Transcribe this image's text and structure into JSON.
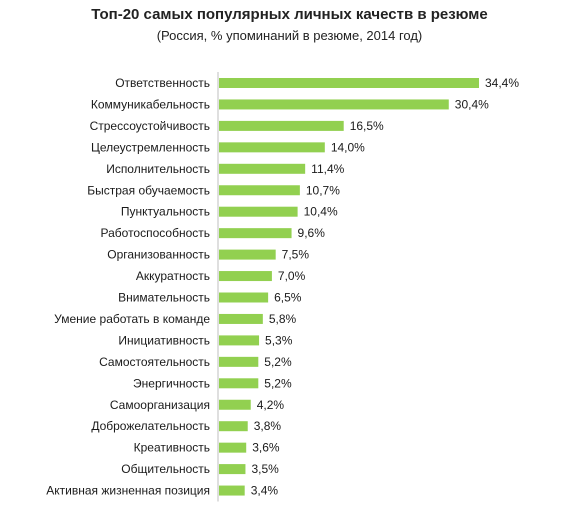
{
  "colors": {
    "bar": "#92d050",
    "axis": "#bfbfbf"
  },
  "chart_data": {
    "type": "bar",
    "orientation": "horizontal",
    "title": "Топ-20 самых популярных личных качеств в резюме",
    "subtitle": "(Россия, % упоминаний в резюме, 2014 год)",
    "categories": [
      "Ответственность",
      "Коммуникабельность",
      "Стрессоустойчивость",
      "Целеустремленность",
      "Исполнительность",
      "Быстрая обучаемость",
      "Пунктуальность",
      "Работоспособность",
      "Организованность",
      "Аккуратность",
      "Внимательность",
      "Умение работать в команде",
      "Инициативность",
      "Самостоятельность",
      "Энергичность",
      "Самоорганизация",
      "Доброжелательность",
      "Креативность",
      "Общительность",
      "Активная жизненная позиция"
    ],
    "values": [
      34.4,
      30.4,
      16.5,
      14.0,
      11.4,
      10.7,
      10.4,
      9.6,
      7.5,
      7.0,
      6.5,
      5.8,
      5.3,
      5.2,
      5.2,
      4.2,
      3.8,
      3.6,
      3.5,
      3.4
    ],
    "value_labels": [
      "34,4%",
      "30,4%",
      "16,5%",
      "14,0%",
      "11,4%",
      "10,7%",
      "10,4%",
      "9,6%",
      "7,5%",
      "7,0%",
      "6,5%",
      "5,8%",
      "5,3%",
      "5,2%",
      "5,2%",
      "4,2%",
      "3,8%",
      "3,6%",
      "3,5%",
      "3,4%"
    ],
    "xlim": [
      0,
      34.4
    ],
    "grid": false,
    "legend": "none"
  }
}
